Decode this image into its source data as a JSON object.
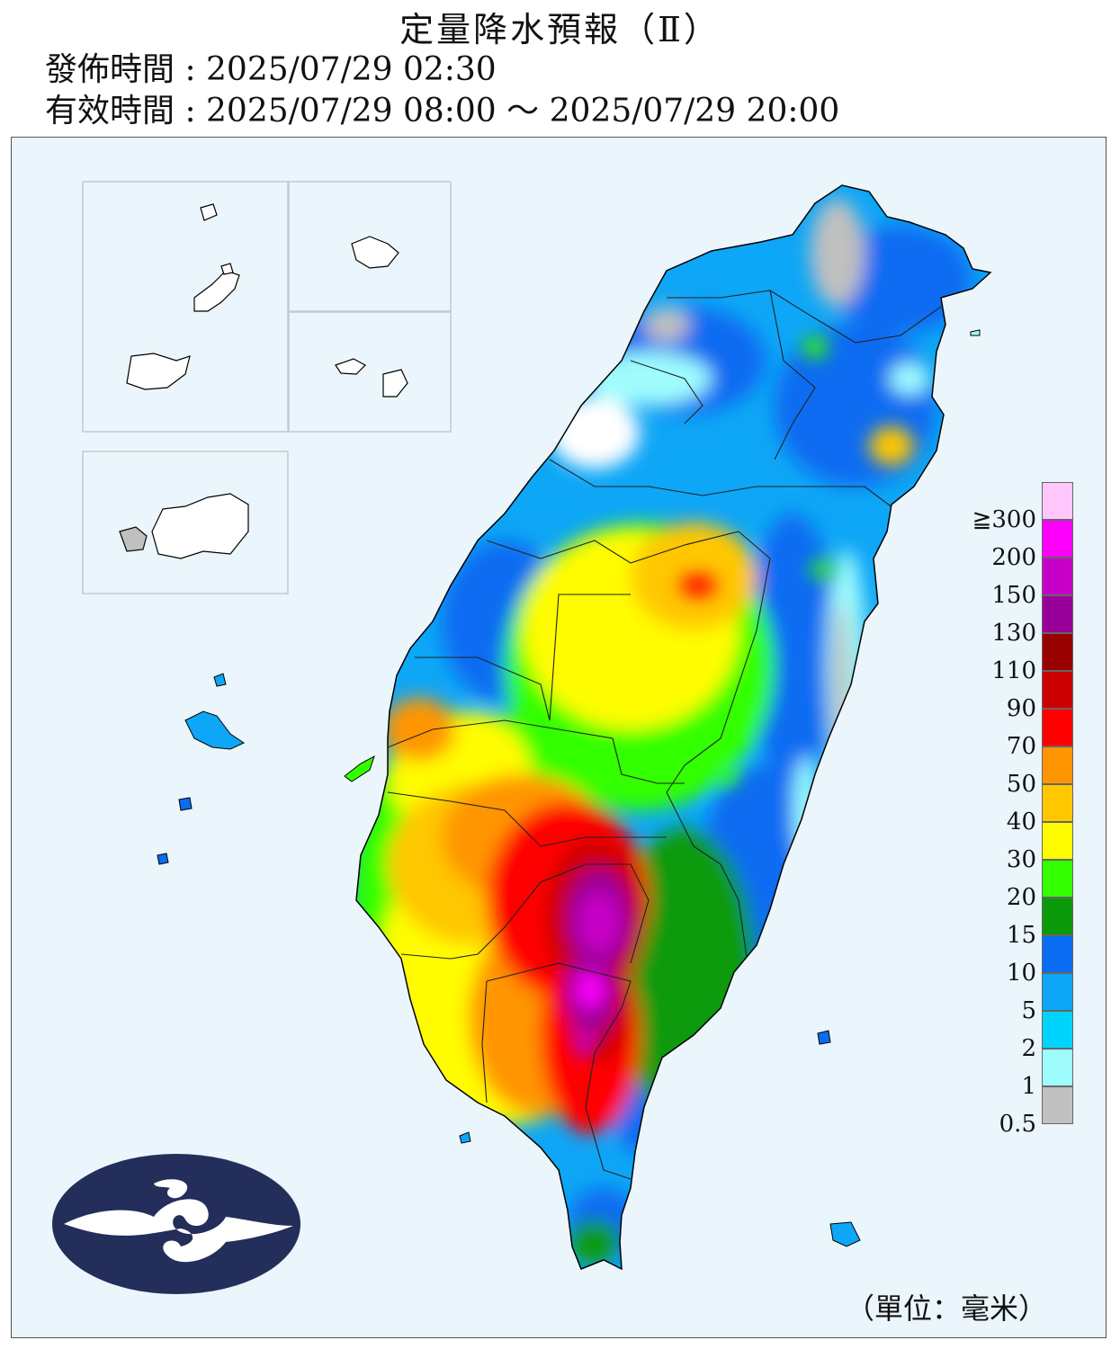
{
  "header": {
    "title": "定量降水預報（Ⅱ）",
    "issue_label": "發佈時間 : ",
    "issue_time": "2025/07/29 02:30",
    "valid_label": "有效時間 : ",
    "valid_start": "2025/07/29 08:00",
    "valid_sep": " ～ ",
    "valid_end": "2025/07/29 20:00"
  },
  "legend": {
    "unit": "（單位：毫米）",
    "levels": [
      {
        "label": "0.5",
        "color": "#c0c0c0"
      },
      {
        "label": "1",
        "color": "#9ffcfd"
      },
      {
        "label": "2",
        "color": "#00d4fc"
      },
      {
        "label": "5",
        "color": "#0ea6f6"
      },
      {
        "label": "10",
        "color": "#0a6cf2"
      },
      {
        "label": "15",
        "color": "#0a9a0a"
      },
      {
        "label": "20",
        "color": "#33ff00"
      },
      {
        "label": "30",
        "color": "#fffc00"
      },
      {
        "label": "40",
        "color": "#ffc700"
      },
      {
        "label": "50",
        "color": "#ff9500"
      },
      {
        "label": "70",
        "color": "#ff0000"
      },
      {
        "label": "90",
        "color": "#cc0000"
      },
      {
        "label": "110",
        "color": "#990000"
      },
      {
        "label": "130",
        "color": "#990099"
      },
      {
        "label": "150",
        "color": "#c700c7"
      },
      {
        "label": "200",
        "color": "#fc00fc"
      },
      {
        "label": "≧300",
        "color": "#ffc7fc"
      }
    ]
  },
  "map": {
    "background_color": "#eaf6fb",
    "logo": "cwa-logo"
  }
}
